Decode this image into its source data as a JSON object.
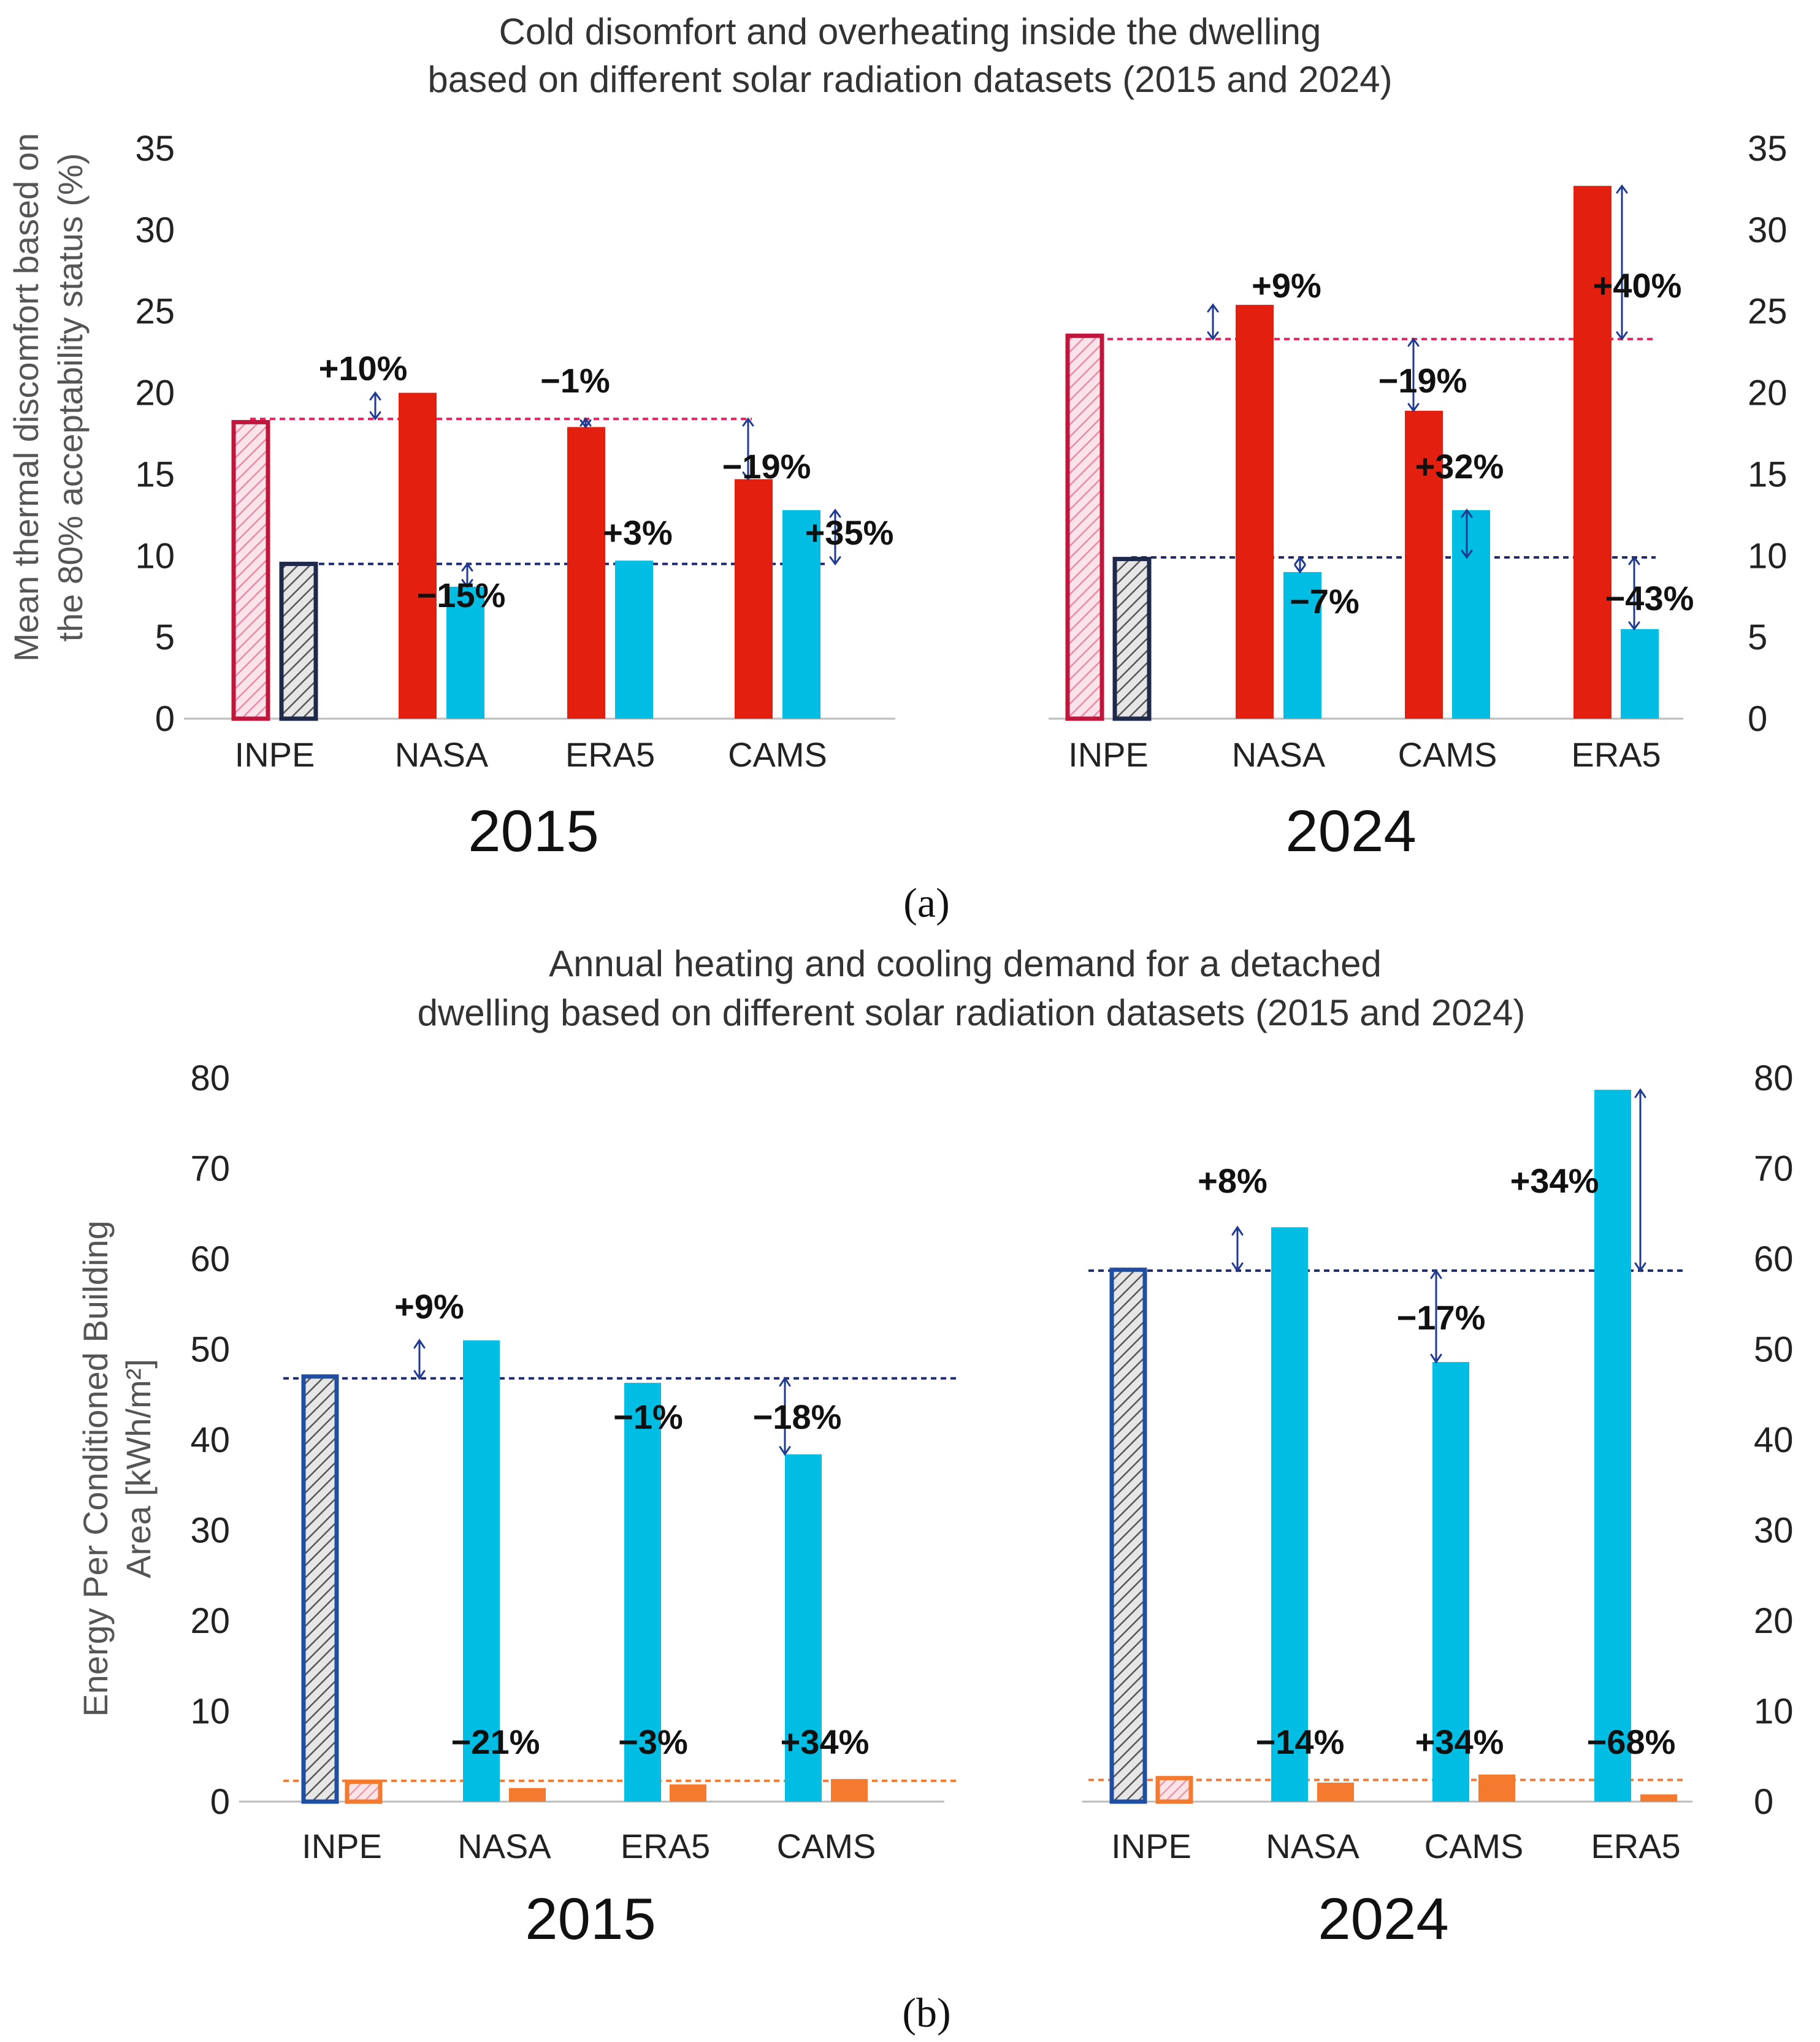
{
  "chart_data": [
    {
      "type": "bar",
      "panel_label": "(a)",
      "title_lines": [
        "Cold disomfort and overheating inside the dwelling",
        "based on different solar radiation datasets (2015 and 2024)"
      ],
      "ylabel_lines": [
        "Mean thermal discomfort based on",
        "the 80% acceptability status (%)"
      ],
      "ylim": [
        0,
        35
      ],
      "yticks": [
        0,
        5,
        10,
        15,
        20,
        25,
        30,
        35
      ],
      "groups": [
        {
          "year": "2015",
          "categories": [
            "INPE",
            "NASA",
            "ERA5",
            "CAMS"
          ],
          "series": [
            {
              "name": "Overheating",
              "values": [
                18.2,
                20.0,
                17.9,
                14.7
              ]
            },
            {
              "name": "Cold discomfort",
              "values": [
                9.5,
                8.1,
                9.7,
                12.8
              ]
            }
          ],
          "reference": {
            "overheating": 18.4,
            "cold": 9.5
          },
          "annotations": [
            {
              "category": "NASA",
              "series": "Overheating",
              "text": "+10%"
            },
            {
              "category": "NASA",
              "series": "Cold discomfort",
              "text": "−15%"
            },
            {
              "category": "ERA5",
              "series": "Overheating",
              "text": "−1%"
            },
            {
              "category": "ERA5",
              "series": "Cold discomfort",
              "text": "+3%"
            },
            {
              "category": "CAMS",
              "series": "Overheating",
              "text": "−19%"
            },
            {
              "category": "CAMS",
              "series": "Cold discomfort",
              "text": "+35%"
            }
          ]
        },
        {
          "year": "2024",
          "categories": [
            "INPE",
            "NASA",
            "CAMS",
            "ERA5"
          ],
          "series": [
            {
              "name": "Overheating",
              "values": [
                23.5,
                25.4,
                18.9,
                32.7
              ]
            },
            {
              "name": "Cold discomfort",
              "values": [
                9.8,
                9.0,
                12.8,
                5.5
              ]
            }
          ],
          "reference": {
            "overheating": 23.3,
            "cold": 9.9
          },
          "annotations": [
            {
              "category": "NASA",
              "series": "Overheating",
              "text": "+9%"
            },
            {
              "category": "NASA",
              "series": "Cold discomfort",
              "text": "−7%"
            },
            {
              "category": "CAMS",
              "series": "Overheating",
              "text": "−19%"
            },
            {
              "category": "CAMS",
              "series": "Cold discomfort",
              "text": "+32%"
            },
            {
              "category": "ERA5",
              "series": "Overheating",
              "text": "+40%"
            },
            {
              "category": "ERA5",
              "series": "Cold discomfort",
              "text": "−43%"
            }
          ]
        }
      ]
    },
    {
      "type": "bar",
      "panel_label": "(b)",
      "title_lines": [
        "Annual heating and cooling demand for a detached",
        "dwelling based on different solar radiation datasets (2015 and 2024)"
      ],
      "ylabel_lines": [
        "Energy Per Conditioned Building",
        "Area [kWh/m²]"
      ],
      "ylim": [
        0,
        80
      ],
      "yticks": [
        0,
        10,
        20,
        30,
        40,
        50,
        60,
        70,
        80
      ],
      "groups": [
        {
          "year": "2015",
          "categories": [
            "INPE",
            "NASA",
            "ERA5",
            "CAMS"
          ],
          "series": [
            {
              "name": "Cooling",
              "values": [
                47.0,
                51.0,
                46.3,
                38.4
              ]
            },
            {
              "name": "Heating",
              "values": [
                2.2,
                1.5,
                1.9,
                2.5
              ]
            }
          ],
          "reference": {
            "cooling": 46.8,
            "heating": 2.3
          },
          "annotations": [
            {
              "category": "NASA",
              "series": "Cooling",
              "text": "+9%"
            },
            {
              "category": "NASA",
              "series": "Heating",
              "text": "−21%"
            },
            {
              "category": "ERA5",
              "series": "Cooling",
              "text": "−1%"
            },
            {
              "category": "ERA5",
              "series": "Heating",
              "text": "−3%"
            },
            {
              "category": "CAMS",
              "series": "Cooling",
              "text": "−18%"
            },
            {
              "category": "CAMS",
              "series": "Heating",
              "text": "+34%"
            }
          ]
        },
        {
          "year": "2024",
          "categories": [
            "INPE",
            "NASA",
            "CAMS",
            "ERA5"
          ],
          "series": [
            {
              "name": "Cooling",
              "values": [
                58.8,
                63.5,
                48.6,
                78.7
              ]
            },
            {
              "name": "Heating",
              "values": [
                2.6,
                2.1,
                3.0,
                0.8
              ]
            }
          ],
          "reference": {
            "cooling": 58.7,
            "heating": 2.4
          },
          "annotations": [
            {
              "category": "NASA",
              "series": "Cooling",
              "text": "+8%"
            },
            {
              "category": "NASA",
              "series": "Heating",
              "text": "−14%"
            },
            {
              "category": "CAMS",
              "series": "Cooling",
              "text": "−17%"
            },
            {
              "category": "CAMS",
              "series": "Heating",
              "text": "+34%"
            },
            {
              "category": "ERA5",
              "series": "Cooling",
              "text": "+34%"
            },
            {
              "category": "ERA5",
              "series": "Heating",
              "text": "−68%"
            }
          ]
        }
      ]
    }
  ],
  "colors": {
    "overheating": "#e3200f",
    "cold": "#00bde3",
    "cooling": "#00bde3",
    "heating": "#f47a30",
    "overheating_ref_outline": "#c0163c",
    "cold_ref_outline": "#1f2a4a",
    "cooling_ref_outline": "#1f4ea3",
    "heating_ref_outline": "#f47a30",
    "ref_line_red": "#e8245a",
    "ref_line_navy": "#1f2a6b",
    "ref_line_orange": "#f47a30",
    "arrow": "#1f3a8f"
  }
}
